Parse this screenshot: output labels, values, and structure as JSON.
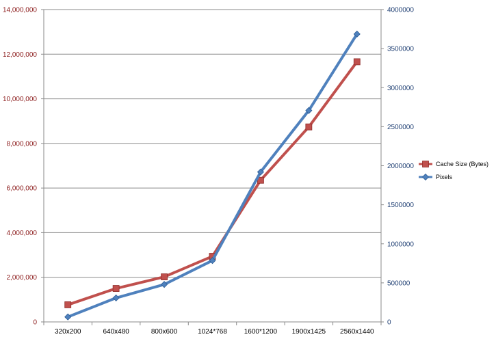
{
  "chart_data": {
    "type": "line",
    "categories": [
      "320x200",
      "640x480",
      "800x600",
      "1024*768",
      "1600*1200",
      "1900x1425",
      "2560x1440"
    ],
    "series": [
      {
        "name": "Cache Size (Bytes)",
        "axis": "left",
        "color": "#c0504d",
        "marker": "square",
        "values": [
          768000,
          1500000,
          2020000,
          2940000,
          6350000,
          8740000,
          11660000
        ]
      },
      {
        "name": "Pixels",
        "axis": "right",
        "color": "#4f81bd",
        "marker": "diamond",
        "values": [
          64000,
          307200,
          480000,
          786432,
          1920000,
          2707500,
          3686400
        ]
      }
    ],
    "y_left": {
      "min": 0,
      "max": 14000000,
      "ticks": [
        0,
        2000000,
        4000000,
        6000000,
        8000000,
        10000000,
        12000000,
        14000000
      ],
      "tick_labels": [
        "0",
        "2,000,000",
        "4,000,000",
        "6,000,000",
        "8,000,000",
        "10,000,000",
        "12,000,000",
        "14,000,000"
      ],
      "color": "#8b1a1a"
    },
    "y_right": {
      "min": 0,
      "max": 4000000,
      "ticks": [
        0,
        500000,
        1000000,
        1500000,
        2000000,
        2500000,
        3000000,
        3500000,
        4000000
      ],
      "tick_labels": [
        "0",
        "500000",
        "1000000",
        "1500000",
        "2000000",
        "2500000",
        "3000000",
        "3500000",
        "4000000"
      ],
      "color": "#1f3f73"
    },
    "grid": true,
    "legend": "right",
    "title": "",
    "xlabel": "",
    "ylabel": ""
  }
}
